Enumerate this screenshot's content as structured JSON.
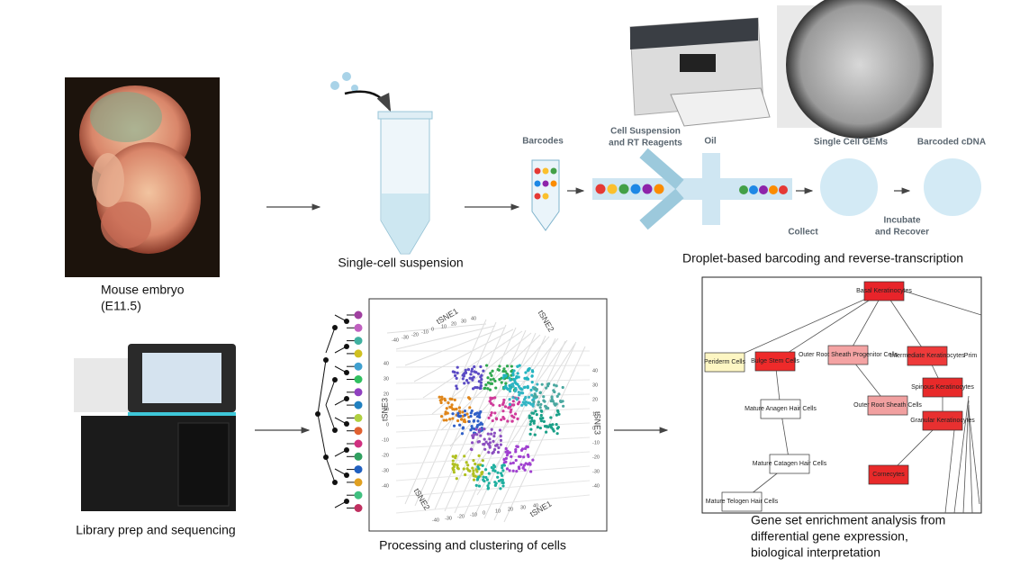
{
  "embryo": {
    "caption": [
      "Mouse embryo",
      "(E11.5)"
    ]
  },
  "suspension": {
    "caption": "Single-cell suspension"
  },
  "barcoding": {
    "barcodes": "Barcodes",
    "reagents": [
      "Cell Suspension",
      "and RT Reagents"
    ],
    "oil": "Oil",
    "gems": "Single Cell GEMs",
    "cdna": "Barcoded cDNA",
    "collect": "Collect",
    "incubate": [
      "Incubate",
      "and Recover"
    ],
    "caption": "Droplet-based barcoding and reverse-transcription"
  },
  "sequencing": {
    "caption": "Library prep and sequencing"
  },
  "clustering": {
    "axis_labels": [
      "tSNE1",
      "tSNE2",
      "tSNE3",
      "tSNE3",
      "tSNE2",
      "tSNE1"
    ],
    "ticks": [
      -40,
      -30,
      -20,
      -10,
      0,
      10,
      20,
      30,
      40
    ],
    "caption": "Processing and clustering of cells"
  },
  "enrichment": {
    "nodes": [
      "Basal Keratinocytes",
      "Periderm Cells",
      "Bulge Stem Cells",
      "Outer Root Sheath Progenitor Cells",
      "Intermediate Keratinocytes",
      "Prim",
      "Spinous Keratinocytes",
      "Mature Anagen Hair Cells",
      "Outer Root Sheath Cells",
      "Granular Keratinocytes",
      "Mature Catagen Hair Cells",
      "Cornecytes",
      "Mature Telogen Hair Cells"
    ],
    "caption": [
      "Gene set enrichment analysis from",
      "differential gene expression,",
      "biological interpretation"
    ]
  }
}
